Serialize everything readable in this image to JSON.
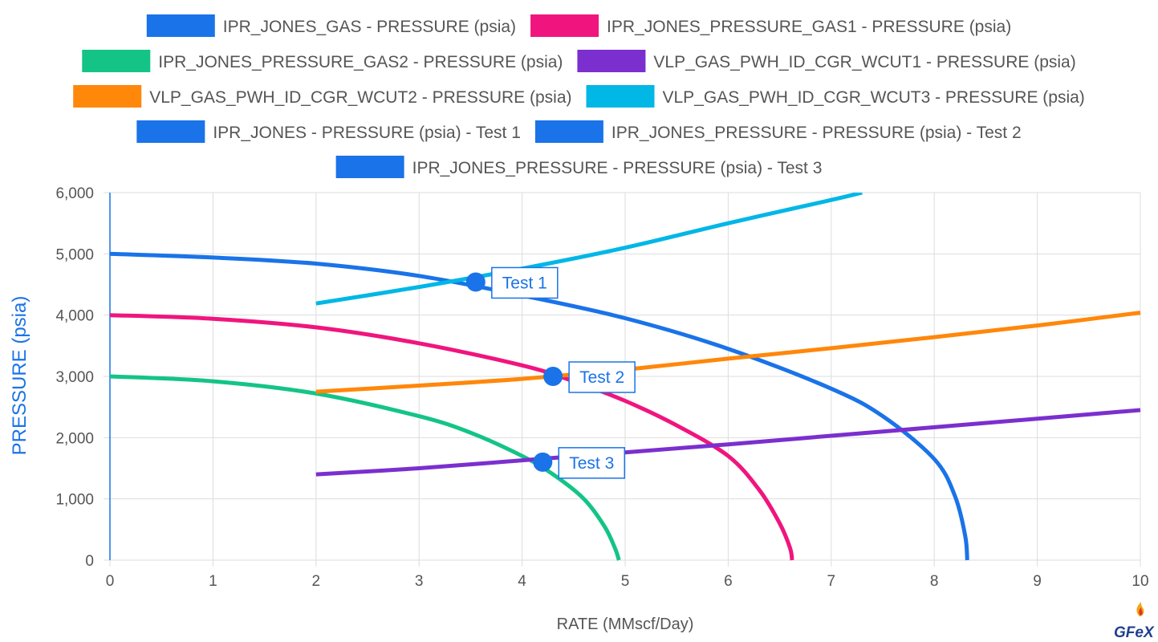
{
  "chart_data": {
    "type": "line",
    "xlabel": "RATE (MMscf/Day)",
    "ylabel": "PRESSURE (psia)",
    "xlim": [
      0,
      10
    ],
    "ylim": [
      0,
      6000
    ],
    "x_ticks": [
      "0",
      "1",
      "2",
      "3",
      "4",
      "5",
      "6",
      "7",
      "8",
      "9",
      "10"
    ],
    "y_ticks": [
      "0",
      "1,000",
      "2,000",
      "3,000",
      "4,000",
      "5,000",
      "6,000"
    ],
    "grid": true,
    "legend_placement": "top",
    "series": [
      {
        "name": "IPR_JONES_GAS - PRESSURE (psia)",
        "color": "#1a73e8",
        "kind": "line",
        "points": [
          [
            0,
            5000
          ],
          [
            1,
            4940
          ],
          [
            2,
            4840
          ],
          [
            3,
            4640
          ],
          [
            4,
            4320
          ],
          [
            5,
            3950
          ],
          [
            6,
            3450
          ],
          [
            7,
            2800
          ],
          [
            7.5,
            2350
          ],
          [
            8,
            1650
          ],
          [
            8.2,
            1050
          ],
          [
            8.3,
            400
          ],
          [
            8.32,
            0
          ]
        ]
      },
      {
        "name": "IPR_JONES_PRESSURE_GAS1 - PRESSURE (psia)",
        "color": "#f0157e",
        "kind": "line",
        "points": [
          [
            0,
            4000
          ],
          [
            1,
            3940
          ],
          [
            2,
            3800
          ],
          [
            3,
            3540
          ],
          [
            4,
            3180
          ],
          [
            4.5,
            2920
          ],
          [
            5,
            2600
          ],
          [
            5.5,
            2200
          ],
          [
            6,
            1700
          ],
          [
            6.3,
            1150
          ],
          [
            6.5,
            600
          ],
          [
            6.6,
            200
          ],
          [
            6.62,
            0
          ]
        ]
      },
      {
        "name": "IPR_JONES_PRESSURE_GAS2 - PRESSURE (psia)",
        "color": "#14c486",
        "kind": "line",
        "points": [
          [
            0,
            3000
          ],
          [
            1,
            2920
          ],
          [
            2,
            2720
          ],
          [
            3,
            2350
          ],
          [
            3.5,
            2080
          ],
          [
            4,
            1700
          ],
          [
            4.3,
            1400
          ],
          [
            4.6,
            1000
          ],
          [
            4.8,
            550
          ],
          [
            4.9,
            200
          ],
          [
            4.94,
            0
          ]
        ]
      },
      {
        "name": "VLP_GAS_PWH_ID_CGR_WCUT1 - PRESSURE (psia)",
        "color": "#7b2fcf",
        "kind": "line",
        "points": [
          [
            2,
            1400
          ],
          [
            3,
            1500
          ],
          [
            4,
            1630
          ],
          [
            5,
            1760
          ],
          [
            6,
            1890
          ],
          [
            7,
            2030
          ],
          [
            8,
            2170
          ],
          [
            9,
            2310
          ],
          [
            10,
            2450
          ]
        ]
      },
      {
        "name": "VLP_GAS_PWH_ID_CGR_WCUT2 - PRESSURE (psia)",
        "color": "#ff870a",
        "kind": "line",
        "points": [
          [
            2,
            2750
          ],
          [
            3,
            2850
          ],
          [
            4,
            2960
          ],
          [
            5,
            3110
          ],
          [
            6,
            3290
          ],
          [
            7,
            3460
          ],
          [
            8,
            3640
          ],
          [
            9,
            3830
          ],
          [
            10,
            4040
          ]
        ]
      },
      {
        "name": "VLP_GAS_PWH_ID_CGR_WCUT3 - PRESSURE (psia)",
        "color": "#00b7e6",
        "kind": "line",
        "points": [
          [
            2,
            4190
          ],
          [
            3,
            4460
          ],
          [
            4,
            4760
          ],
          [
            5,
            5100
          ],
          [
            6,
            5500
          ],
          [
            7,
            5880
          ],
          [
            7.3,
            6000
          ]
        ]
      },
      {
        "name": "IPR_JONES - PRESSURE (psia) - Test 1",
        "color": "#1a73e8",
        "kind": "marker",
        "label": "Test 1",
        "points": [
          [
            3.55,
            4540
          ]
        ]
      },
      {
        "name": "IPR_JONES_PRESSURE - PRESSURE (psia) - Test 2",
        "color": "#1a73e8",
        "kind": "marker",
        "label": "Test 2",
        "points": [
          [
            4.3,
            3000
          ]
        ]
      },
      {
        "name": "IPR_JONES_PRESSURE - PRESSURE (psia) - Test 3",
        "color": "#1a73e8",
        "kind": "marker",
        "label": "Test 3",
        "points": [
          [
            4.2,
            1600
          ]
        ]
      }
    ]
  },
  "logo": {
    "text": "GFeX"
  }
}
